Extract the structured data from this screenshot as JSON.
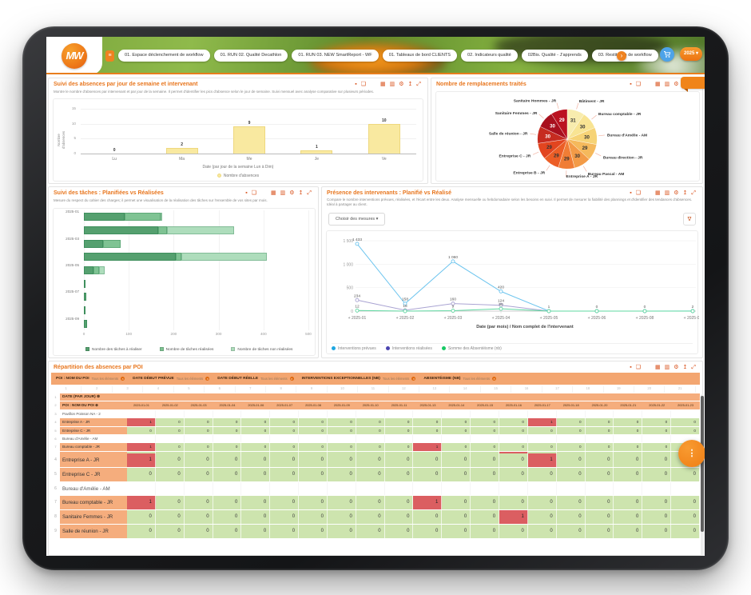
{
  "nav": {
    "logo": "MW",
    "tabs": [
      "01. Espace déclenchement de workflow",
      "01. RUN 02. Qualité Decathlon",
      "01. RUN 03. NEW SmartReport - WF",
      "01. Tableaux de bord CLIENTS",
      "02. Indicateurs qualité",
      "02Bis. Qualité - J'apprends",
      "03. Restitution de workflow"
    ],
    "more_label": "›",
    "year": "2025 ▾"
  },
  "icons": [
    {
      "name": "lock-icon",
      "glyph": "▪"
    },
    {
      "name": "export-icon",
      "glyph": "❏"
    },
    {
      "name": "spacer",
      "glyph": ""
    },
    {
      "name": "calendar-icon",
      "glyph": "▦"
    },
    {
      "name": "chart-icon",
      "glyph": "▥"
    },
    {
      "name": "settings-icon",
      "glyph": "⚙"
    },
    {
      "name": "upload-icon",
      "glyph": "↥"
    },
    {
      "name": "expand-icon",
      "glyph": "⤢"
    }
  ],
  "panels": {
    "absences": {
      "title": "Suivi des absences par jour de semaine et intervenant",
      "subtitle": "Montre le nombre d'absences par intervenant et par jour de la semaine. Il permet d'identifier les pics d'absence selon le jour de semaine. Suivi mensuel avec analyse comparative sur plusieurs périodes."
    },
    "remplacements": {
      "title": "Nombre de remplacements traités"
    },
    "taches": {
      "title": "Suivi des tâches : Planifiées vs Réalisées",
      "subtitle": "Mesure du respect du cahier des charges; il permet une visualisation de la réalisation des tâches sur l'ensemble de vos sites par mois."
    },
    "presence": {
      "title": "Présence des intervenants : Planifié vs Réalisé",
      "subtitle": "Compare le nombre interventions prévues, réalisées, et l'écart entre les deux. Analyse mensuelle ou hebdomadaire selon les besoins en suivi. Il permet de mesurer la fiabilité des plannings et d'identifier des tendances d'absences. Idéal à partager au client.",
      "measures_button": "Choisir des mesures ▾"
    },
    "repartition": {
      "title": "Répartition des absences par POI"
    }
  },
  "chart_data": [
    {
      "id": "absences_bar",
      "type": "bar",
      "title": "Suivi des absences par jour de semaine et intervenant",
      "categories": [
        "Lu",
        "Ma",
        "Me",
        "Je",
        "Ve"
      ],
      "values": [
        0,
        2,
        9,
        1,
        10
      ],
      "xlabel": "Date (par jour de la semaine Lun à Dim)",
      "ylabel": "Nombre\nd'absences",
      "ylim": [
        0,
        15
      ],
      "yticks": [
        0,
        5,
        10,
        15
      ],
      "legend": [
        "Nombre d'absences"
      ],
      "bar_color": "#f9e9a0"
    },
    {
      "id": "remplacements_pie",
      "type": "pie",
      "title": "Nombre de remplacements traités",
      "slices": [
        {
          "label": "Bâtiment - JR",
          "value": 31,
          "color": "#f8ecae"
        },
        {
          "label": "Bureau comptable - JR",
          "value": 30,
          "color": "#f8e493"
        },
        {
          "label": "Bureau d'Amélie - AM",
          "value": 30,
          "color": "#f6d376"
        },
        {
          "label": "Bureau direction - JR",
          "value": 29,
          "color": "#f5b95c"
        },
        {
          "label": "Bureau Pascal - AM",
          "value": 30,
          "color": "#f39b47"
        },
        {
          "label": "Entreprise A - JR",
          "value": 29,
          "color": "#f07d35"
        },
        {
          "label": "Entreprise B - JR",
          "value": 29,
          "color": "#ec5e26"
        },
        {
          "label": "Entreprise C - JR",
          "value": 29,
          "color": "#e2451f"
        },
        {
          "label": "Salle de réunion - JR",
          "value": 30,
          "color": "#c62b20"
        },
        {
          "label": "Sanitaire Femmes - JR",
          "value": 30,
          "color": "#a8101e"
        },
        {
          "label": "Sanitaire Hommes - JR",
          "value": 29,
          "color": "#bb1220"
        }
      ]
    },
    {
      "id": "taches_hbar",
      "type": "bar",
      "orientation": "horizontal",
      "stacked": true,
      "title": "Suivi des tâches : Planifiées vs Réalisées",
      "categories": [
        "2025-01",
        "2025-02",
        "2025-03",
        "2025-04",
        "2025-05",
        "2025-06",
        "2025-07",
        "2025-08",
        "2025-09"
      ],
      "series": [
        {
          "name": "Nombre des tâches à réaliser",
          "color": "#55a06f",
          "values": [
            90,
            165,
            42,
            205,
            22,
            2,
            5,
            2,
            8
          ]
        },
        {
          "name": "Nombre de tâches réalisées",
          "color": "#7fc393",
          "values": [
            80,
            20,
            40,
            12,
            12,
            0,
            0,
            0,
            0
          ]
        },
        {
          "name": "Nombre de tâches non réalisées",
          "color": "#aeddbc",
          "values": [
            2,
            150,
            0,
            190,
            12,
            0,
            0,
            0,
            0
          ]
        }
      ],
      "xlim": [
        0,
        500
      ],
      "xticks": [
        0,
        100,
        200,
        300,
        400,
        500
      ]
    },
    {
      "id": "presence_line",
      "type": "line",
      "title": "Présence des intervenants : Planifié vs Réalisé",
      "x": [
        "+ 2025-01",
        "+ 2025-02",
        "+ 2025-03",
        "+ 2025-04",
        "+ 2025-05",
        "+ 2025-06",
        "+ 2025-08",
        "+ 2025-09"
      ],
      "series": [
        {
          "name": "Interventions prévues",
          "color": "#6cc4ee",
          "dot": "#1ea7e1",
          "values": [
            1433,
            158,
            1060,
            420,
            1,
            0,
            0,
            2
          ]
        },
        {
          "name": "Interventions réalisées",
          "color": "#a9a3d2",
          "dot": "#4b44b0",
          "values": [
            234,
            18,
            160,
            124,
            0,
            0,
            0,
            0
          ]
        },
        {
          "name": "Somme des Absentéisme (nb)",
          "color": "#5fd8a1",
          "dot": "#17c964",
          "values": [
            12,
            0,
            9,
            50,
            0,
            0,
            0,
            0
          ]
        }
      ],
      "xlabel": "Date (par mois) / Nom complet de l'intervenant",
      "ylim": [
        0,
        1500
      ],
      "yticks": [
        0,
        500,
        1000,
        1500
      ]
    },
    {
      "id": "absences_table",
      "type": "table",
      "filters": [
        {
          "label": "POI : NOM DU POI",
          "value": "Tous les éléments"
        },
        {
          "label": "DATE DÉBUT PRÉVUE",
          "value": "Tous les éléments"
        },
        {
          "label": "DATE DÉBUT RÉELLE",
          "value": "Tous les éléments"
        },
        {
          "label": "INTERVENTIONS EXCEPTIONNELLES (NB)",
          "value": "Tous les éléments"
        },
        {
          "label": "ABSENTÉISME (NB)",
          "value": "Tous les éléments"
        }
      ],
      "column_count": 21,
      "corner_header": "DATE (PAR JOUR)",
      "row_header": "POI : NOM DU POI",
      "dates": [
        "2025-01-01",
        "2025-01-02",
        "2025-01-03",
        "2025-01-04",
        "2025-01-06",
        "2025-01-07",
        "2025-01-08",
        "2025-01-09",
        "2025-01-10",
        "2025-01-11",
        "2025-01-13",
        "2025-01-14",
        "2025-01-15",
        "2025-01-16",
        "2025-01-17",
        "2025-01-18",
        "2025-01-20",
        "2025-01-21",
        "2025-01-22",
        "2025-01-23"
      ],
      "rows": [
        {
          "name": "Pavillon Poisson NA - 2",
          "empty": true
        },
        {
          "name": "Entreprise A - JR",
          "red_dates": [
            "2025-01-01",
            "2025-01-17"
          ]
        },
        {
          "name": "Entreprise C - JR",
          "red_dates": []
        },
        {
          "name": "Bureau d'Amélie - AM",
          "empty": true
        },
        {
          "name": "Bureau comptable - JR",
          "red_dates": [
            "2025-01-01",
            "2025-01-13"
          ]
        },
        {
          "name": "Sanitaire Femmes - JR",
          "red_dates": [
            "2025-01-16"
          ]
        },
        {
          "name": "Salle de réunion - JR",
          "red_dates": []
        }
      ],
      "red_value": 1,
      "green_value": 0
    }
  ],
  "colors": {
    "accent": "#e8761e",
    "table_orange": "#f5ad7d",
    "cell_green": "#cde4ae",
    "cell_red": "#db5e61"
  }
}
